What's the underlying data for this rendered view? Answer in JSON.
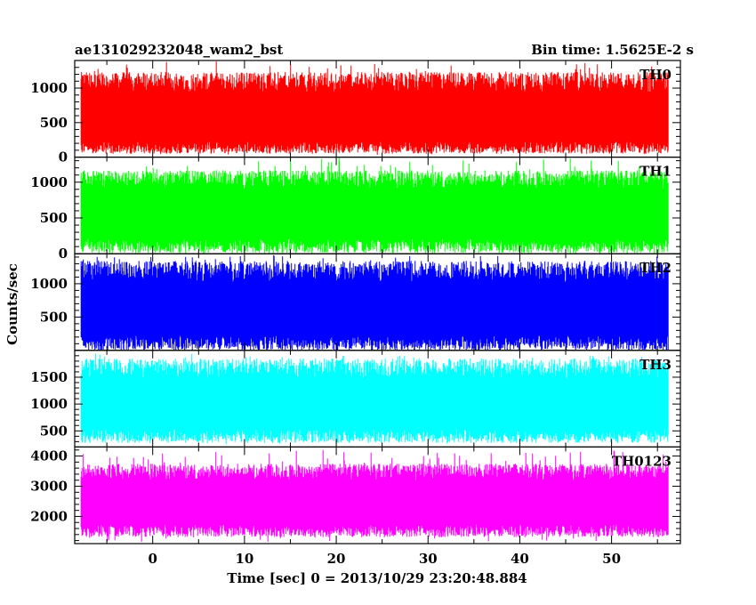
{
  "header": {
    "title": "ae131029232048_wam2_bst",
    "bin_time": "Bin time: 1.5625E-2 s"
  },
  "chart_data": {
    "type": "line",
    "xlabel": "Time [sec] 0 = 2013/10/29 23:20:48.884",
    "ylabel": "Counts/sec",
    "xlim": [
      -8.5,
      57.5
    ],
    "data_range": [
      -7.8,
      56.2
    ],
    "x_ticks": [
      0,
      10,
      20,
      30,
      40,
      50
    ],
    "x_tick_labels": [
      "0",
      "10",
      "20",
      "30",
      "40",
      "50"
    ],
    "panels": [
      {
        "label": "TH0",
        "color": "#ff0000",
        "ylim": [
          0,
          1400
        ],
        "y_ticks": [
          0,
          500,
          1000
        ],
        "y_tick_labels": [
          "0",
          "500",
          "1000"
        ],
        "mean": 560,
        "typical_min": 150,
        "typical_max": 1100,
        "min": 30,
        "max": 1400
      },
      {
        "label": "TH1",
        "color": "#00ff00",
        "ylim": [
          0,
          1350
        ],
        "y_ticks": [
          0,
          500,
          1000
        ],
        "y_tick_labels": [
          "0",
          "500",
          "1000"
        ],
        "mean": 580,
        "typical_min": 120,
        "typical_max": 1050,
        "min": 30,
        "max": 1350
      },
      {
        "label": "TH2",
        "color": "#0000ff",
        "ylim": [
          0,
          1450
        ],
        "y_ticks": [
          500,
          1000
        ],
        "y_tick_labels": [
          "500",
          "1000"
        ],
        "mean": 620,
        "typical_min": 120,
        "typical_max": 1200,
        "min": 20,
        "max": 1450
      },
      {
        "label": "TH3",
        "color": "#00ffff",
        "ylim": [
          200,
          2000
        ],
        "y_ticks": [
          500,
          1000,
          1500
        ],
        "y_tick_labels": [
          "500",
          "1000",
          "1500"
        ],
        "mean": 1000,
        "typical_min": 420,
        "typical_max": 1680,
        "min": 250,
        "max": 1950
      },
      {
        "label": "TH0123",
        "color": "#ff00ff",
        "ylim": [
          1100,
          4300
        ],
        "y_ticks": [
          2000,
          3000,
          4000
        ],
        "y_tick_labels": [
          "2000",
          "3000",
          "4000"
        ],
        "mean": 2500,
        "typical_min": 1550,
        "typical_max": 3500,
        "min": 1150,
        "max": 4250
      }
    ]
  }
}
